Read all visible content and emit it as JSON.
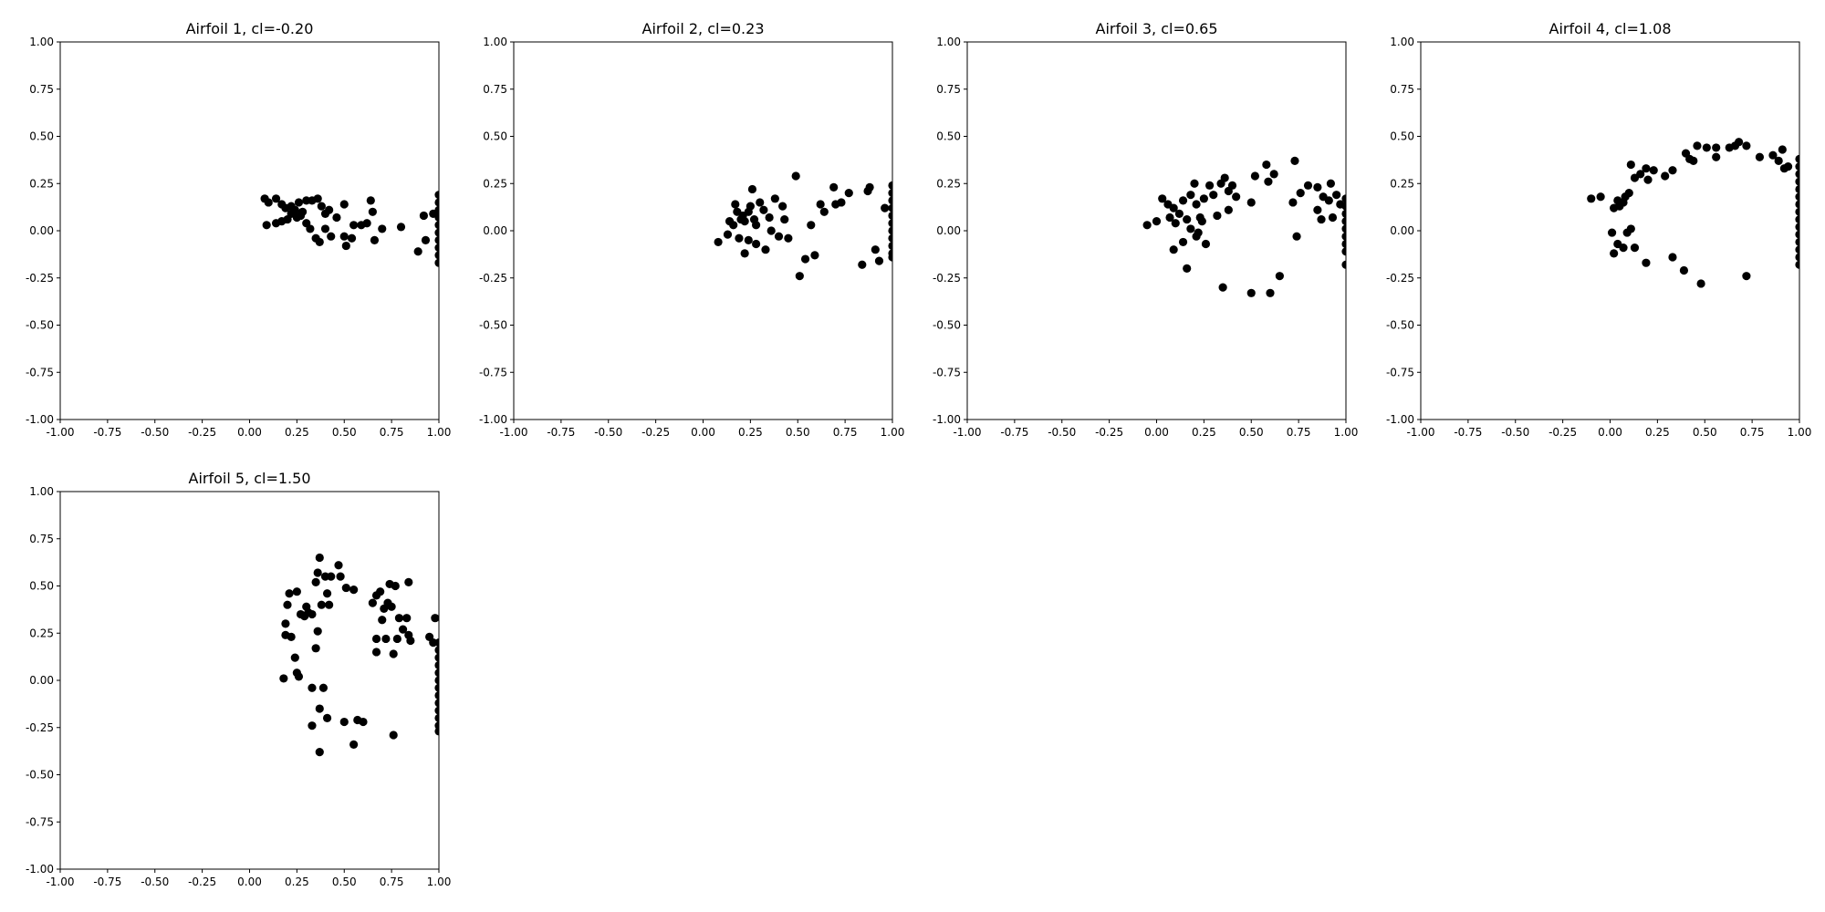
{
  "figure": {
    "background": "#ffffff",
    "marker_color": "#000000"
  },
  "chart_data": [
    {
      "type": "scatter",
      "title": "Airfoil 1, cl=-0.20",
      "xlim": [
        -1.0,
        1.0
      ],
      "ylim": [
        -1.0,
        1.0
      ],
      "xticks": [
        "-1.00",
        "-0.75",
        "-0.50",
        "-0.25",
        "0.00",
        "0.25",
        "0.50",
        "0.75",
        "1.00"
      ],
      "yticks": [
        "-1.00",
        "-0.75",
        "-0.50",
        "-0.25",
        "0.00",
        "0.25",
        "0.50",
        "0.75",
        "1.00"
      ],
      "grid": false,
      "points": [
        [
          0.08,
          0.17
        ],
        [
          0.1,
          0.15
        ],
        [
          0.14,
          0.17
        ],
        [
          0.17,
          0.14
        ],
        [
          0.19,
          0.12
        ],
        [
          0.22,
          0.13
        ],
        [
          0.24,
          0.11
        ],
        [
          0.26,
          0.15
        ],
        [
          0.28,
          0.1
        ],
        [
          0.3,
          0.16
        ],
        [
          0.33,
          0.16
        ],
        [
          0.36,
          0.17
        ],
        [
          0.38,
          0.13
        ],
        [
          0.4,
          0.09
        ],
        [
          0.42,
          0.11
        ],
        [
          0.09,
          0.03
        ],
        [
          0.14,
          0.04
        ],
        [
          0.17,
          0.05
        ],
        [
          0.2,
          0.06
        ],
        [
          0.22,
          0.09
        ],
        [
          0.25,
          0.07
        ],
        [
          0.27,
          0.08
        ],
        [
          0.3,
          0.04
        ],
        [
          0.32,
          0.01
        ],
        [
          0.35,
          -0.04
        ],
        [
          0.37,
          -0.06
        ],
        [
          0.4,
          0.01
        ],
        [
          0.43,
          -0.03
        ],
        [
          0.46,
          0.07
        ],
        [
          0.5,
          0.14
        ],
        [
          0.5,
          -0.03
        ],
        [
          0.51,
          -0.08
        ],
        [
          0.54,
          -0.04
        ],
        [
          0.55,
          0.03
        ],
        [
          0.59,
          0.03
        ],
        [
          0.62,
          0.04
        ],
        [
          0.64,
          0.16
        ],
        [
          0.65,
          0.1
        ],
        [
          0.66,
          -0.05
        ],
        [
          0.7,
          0.01
        ],
        [
          0.8,
          0.02
        ],
        [
          0.89,
          -0.11
        ],
        [
          0.92,
          0.08
        ],
        [
          0.93,
          -0.05
        ],
        [
          0.97,
          0.09
        ],
        [
          1.0,
          0.19
        ],
        [
          1.0,
          0.15
        ],
        [
          1.0,
          0.11
        ],
        [
          1.0,
          0.07
        ],
        [
          1.0,
          0.03
        ],
        [
          1.0,
          -0.01
        ],
        [
          1.0,
          -0.05
        ],
        [
          1.0,
          -0.09
        ],
        [
          1.0,
          -0.13
        ],
        [
          1.0,
          -0.17
        ]
      ]
    },
    {
      "type": "scatter",
      "title": "Airfoil 2, cl=0.23",
      "xlim": [
        -1.0,
        1.0
      ],
      "ylim": [
        -1.0,
        1.0
      ],
      "xticks": [
        "-1.00",
        "-0.75",
        "-0.50",
        "-0.25",
        "0.00",
        "0.25",
        "0.50",
        "0.75",
        "1.00"
      ],
      "yticks": [
        "-1.00",
        "-0.75",
        "-0.50",
        "-0.25",
        "0.00",
        "0.25",
        "0.50",
        "0.75",
        "1.00"
      ],
      "grid": false,
      "points": [
        [
          0.08,
          -0.06
        ],
        [
          0.13,
          -0.02
        ],
        [
          0.14,
          0.05
        ],
        [
          0.16,
          0.03
        ],
        [
          0.18,
          0.1
        ],
        [
          0.2,
          0.06
        ],
        [
          0.21,
          0.08
        ],
        [
          0.22,
          0.05
        ],
        [
          0.24,
          0.1
        ],
        [
          0.25,
          0.13
        ],
        [
          0.27,
          0.06
        ],
        [
          0.28,
          0.03
        ],
        [
          0.3,
          0.15
        ],
        [
          0.32,
          0.11
        ],
        [
          0.35,
          0.07
        ],
        [
          0.17,
          0.14
        ],
        [
          0.19,
          -0.04
        ],
        [
          0.22,
          -0.12
        ],
        [
          0.24,
          -0.05
        ],
        [
          0.26,
          0.22
        ],
        [
          0.28,
          -0.07
        ],
        [
          0.33,
          -0.1
        ],
        [
          0.36,
          0.0
        ],
        [
          0.38,
          0.17
        ],
        [
          0.4,
          -0.03
        ],
        [
          0.42,
          0.13
        ],
        [
          0.43,
          0.06
        ],
        [
          0.45,
          -0.04
        ],
        [
          0.49,
          0.29
        ],
        [
          0.51,
          -0.24
        ],
        [
          0.54,
          -0.15
        ],
        [
          0.57,
          0.03
        ],
        [
          0.59,
          -0.13
        ],
        [
          0.62,
          0.14
        ],
        [
          0.64,
          0.1
        ],
        [
          0.69,
          0.23
        ],
        [
          0.7,
          0.14
        ],
        [
          0.73,
          0.15
        ],
        [
          0.77,
          0.2
        ],
        [
          0.84,
          -0.18
        ],
        [
          0.87,
          0.21
        ],
        [
          0.88,
          0.23
        ],
        [
          0.91,
          -0.1
        ],
        [
          0.93,
          -0.16
        ],
        [
          0.96,
          0.12
        ],
        [
          1.0,
          0.24
        ],
        [
          1.0,
          0.2
        ],
        [
          1.0,
          0.16
        ],
        [
          1.0,
          0.12
        ],
        [
          1.0,
          0.08
        ],
        [
          1.0,
          0.04
        ],
        [
          1.0,
          0.0
        ],
        [
          1.0,
          -0.04
        ],
        [
          1.0,
          -0.08
        ],
        [
          1.0,
          -0.12
        ],
        [
          1.0,
          -0.14
        ]
      ]
    },
    {
      "type": "scatter",
      "title": "Airfoil 3, cl=0.65",
      "xlim": [
        -1.0,
        1.0
      ],
      "ylim": [
        -1.0,
        1.0
      ],
      "xticks": [
        "-1.00",
        "-0.75",
        "-0.50",
        "-0.25",
        "0.00",
        "0.25",
        "0.50",
        "0.75",
        "1.00"
      ],
      "yticks": [
        "-1.00",
        "-0.75",
        "-0.50",
        "-0.25",
        "0.00",
        "0.25",
        "0.50",
        "0.75",
        "1.00"
      ],
      "grid": false,
      "points": [
        [
          -0.05,
          0.03
        ],
        [
          0.0,
          0.05
        ],
        [
          0.03,
          0.17
        ],
        [
          0.06,
          0.14
        ],
        [
          0.07,
          0.07
        ],
        [
          0.09,
          0.12
        ],
        [
          0.1,
          0.04
        ],
        [
          0.12,
          0.09
        ],
        [
          0.14,
          0.16
        ],
        [
          0.16,
          0.06
        ],
        [
          0.18,
          0.19
        ],
        [
          0.2,
          0.25
        ],
        [
          0.21,
          0.14
        ],
        [
          0.23,
          0.07
        ],
        [
          0.25,
          0.17
        ],
        [
          0.09,
          -0.1
        ],
        [
          0.14,
          -0.06
        ],
        [
          0.16,
          -0.2
        ],
        [
          0.18,
          0.01
        ],
        [
          0.21,
          -0.03
        ],
        [
          0.22,
          -0.01
        ],
        [
          0.24,
          0.05
        ],
        [
          0.26,
          -0.07
        ],
        [
          0.28,
          0.24
        ],
        [
          0.3,
          0.19
        ],
        [
          0.32,
          0.08
        ],
        [
          0.34,
          0.25
        ],
        [
          0.35,
          -0.3
        ],
        [
          0.36,
          0.28
        ],
        [
          0.38,
          0.11
        ],
        [
          0.38,
          0.21
        ],
        [
          0.4,
          0.24
        ],
        [
          0.42,
          0.18
        ],
        [
          0.5,
          0.15
        ],
        [
          0.5,
          -0.33
        ],
        [
          0.52,
          0.29
        ],
        [
          0.58,
          0.35
        ],
        [
          0.59,
          0.26
        ],
        [
          0.6,
          -0.33
        ],
        [
          0.62,
          0.3
        ],
        [
          0.65,
          -0.24
        ],
        [
          0.72,
          0.15
        ],
        [
          0.73,
          0.37
        ],
        [
          0.74,
          -0.03
        ],
        [
          0.76,
          0.2
        ],
        [
          0.8,
          0.24
        ],
        [
          0.85,
          0.23
        ],
        [
          0.85,
          0.11
        ],
        [
          0.87,
          0.06
        ],
        [
          0.88,
          0.18
        ],
        [
          0.91,
          0.16
        ],
        [
          0.92,
          0.25
        ],
        [
          0.93,
          0.07
        ],
        [
          0.95,
          0.19
        ],
        [
          0.97,
          0.14
        ],
        [
          1.0,
          0.17
        ],
        [
          1.0,
          0.13
        ],
        [
          1.0,
          0.09
        ],
        [
          1.0,
          0.05
        ],
        [
          1.0,
          0.01
        ],
        [
          1.0,
          -0.03
        ],
        [
          1.0,
          -0.07
        ],
        [
          1.0,
          -0.11
        ],
        [
          1.0,
          -0.18
        ]
      ]
    },
    {
      "type": "scatter",
      "title": "Airfoil 4, cl=1.08",
      "xlim": [
        -1.0,
        1.0
      ],
      "ylim": [
        -1.0,
        1.0
      ],
      "xticks": [
        "-1.00",
        "-0.75",
        "-0.50",
        "-0.25",
        "0.00",
        "0.25",
        "0.50",
        "0.75",
        "1.00"
      ],
      "yticks": [
        "-1.00",
        "-0.75",
        "-0.50",
        "-0.25",
        "0.00",
        "0.25",
        "0.50",
        "0.75",
        "1.00"
      ],
      "grid": false,
      "points": [
        [
          -0.1,
          0.17
        ],
        [
          -0.05,
          0.18
        ],
        [
          0.02,
          0.12
        ],
        [
          0.04,
          0.16
        ],
        [
          0.05,
          0.13
        ],
        [
          0.07,
          0.15
        ],
        [
          0.08,
          0.18
        ],
        [
          0.1,
          0.2
        ],
        [
          0.11,
          0.35
        ],
        [
          0.13,
          0.28
        ],
        [
          0.16,
          0.3
        ],
        [
          0.19,
          0.33
        ],
        [
          0.2,
          0.27
        ],
        [
          0.23,
          0.32
        ],
        [
          0.29,
          0.29
        ],
        [
          0.01,
          -0.01
        ],
        [
          0.02,
          -0.12
        ],
        [
          0.04,
          -0.07
        ],
        [
          0.07,
          -0.09
        ],
        [
          0.09,
          -0.01
        ],
        [
          0.11,
          0.01
        ],
        [
          0.13,
          -0.09
        ],
        [
          0.19,
          -0.17
        ],
        [
          0.33,
          0.32
        ],
        [
          0.33,
          -0.14
        ],
        [
          0.39,
          -0.21
        ],
        [
          0.4,
          0.41
        ],
        [
          0.42,
          0.38
        ],
        [
          0.44,
          0.37
        ],
        [
          0.46,
          0.45
        ],
        [
          0.48,
          -0.28
        ],
        [
          0.51,
          0.44
        ],
        [
          0.56,
          0.44
        ],
        [
          0.56,
          0.39
        ],
        [
          0.63,
          0.44
        ],
        [
          0.66,
          0.45
        ],
        [
          0.68,
          0.47
        ],
        [
          0.72,
          0.45
        ],
        [
          0.72,
          -0.24
        ],
        [
          0.79,
          0.39
        ],
        [
          0.86,
          0.4
        ],
        [
          0.89,
          0.37
        ],
        [
          0.91,
          0.43
        ],
        [
          0.92,
          0.33
        ],
        [
          0.94,
          0.34
        ],
        [
          1.0,
          0.38
        ],
        [
          1.0,
          0.34
        ],
        [
          1.0,
          0.3
        ],
        [
          1.0,
          0.26
        ],
        [
          1.0,
          0.22
        ],
        [
          1.0,
          0.18
        ],
        [
          1.0,
          0.14
        ],
        [
          1.0,
          0.1
        ],
        [
          1.0,
          0.06
        ],
        [
          1.0,
          0.02
        ],
        [
          1.0,
          -0.02
        ],
        [
          1.0,
          -0.06
        ],
        [
          1.0,
          -0.1
        ],
        [
          1.0,
          -0.14
        ],
        [
          1.0,
          -0.18
        ]
      ]
    },
    {
      "type": "scatter",
      "title": "Airfoil 5, cl=1.50",
      "xlim": [
        -1.0,
        1.0
      ],
      "ylim": [
        -1.0,
        1.0
      ],
      "xticks": [
        "-1.00",
        "-0.75",
        "-0.50",
        "-0.25",
        "0.00",
        "0.25",
        "0.50",
        "0.75",
        "1.00"
      ],
      "yticks": [
        "-1.00",
        "-0.75",
        "-0.50",
        "-0.25",
        "0.00",
        "0.25",
        "0.50",
        "0.75",
        "1.00"
      ],
      "grid": false,
      "points": [
        [
          0.19,
          0.3
        ],
        [
          0.19,
          0.24
        ],
        [
          0.2,
          0.4
        ],
        [
          0.21,
          0.46
        ],
        [
          0.22,
          0.23
        ],
        [
          0.25,
          0.47
        ],
        [
          0.27,
          0.35
        ],
        [
          0.29,
          0.34
        ],
        [
          0.3,
          0.39
        ],
        [
          0.31,
          0.36
        ],
        [
          0.33,
          0.35
        ],
        [
          0.35,
          0.52
        ],
        [
          0.36,
          0.26
        ],
        [
          0.36,
          0.57
        ],
        [
          0.37,
          0.65
        ],
        [
          0.38,
          0.4
        ],
        [
          0.4,
          0.55
        ],
        [
          0.41,
          0.46
        ],
        [
          0.42,
          0.4
        ],
        [
          0.43,
          0.55
        ],
        [
          0.47,
          0.61
        ],
        [
          0.48,
          0.55
        ],
        [
          0.51,
          0.49
        ],
        [
          0.55,
          0.48
        ],
        [
          0.65,
          0.41
        ],
        [
          0.67,
          0.45
        ],
        [
          0.69,
          0.47
        ],
        [
          0.71,
          0.38
        ],
        [
          0.73,
          0.41
        ],
        [
          0.74,
          0.51
        ],
        [
          0.75,
          0.39
        ],
        [
          0.77,
          0.5
        ],
        [
          0.79,
          0.33
        ],
        [
          0.81,
          0.27
        ],
        [
          0.83,
          0.33
        ],
        [
          0.84,
          0.24
        ],
        [
          0.84,
          0.52
        ],
        [
          0.67,
          0.22
        ],
        [
          0.67,
          0.15
        ],
        [
          0.7,
          0.32
        ],
        [
          0.72,
          0.22
        ],
        [
          0.76,
          0.14
        ],
        [
          0.78,
          0.22
        ],
        [
          0.85,
          0.21
        ],
        [
          0.95,
          0.23
        ],
        [
          0.18,
          0.01
        ],
        [
          0.24,
          0.12
        ],
        [
          0.25,
          0.04
        ],
        [
          0.26,
          0.02
        ],
        [
          0.33,
          -0.04
        ],
        [
          0.33,
          -0.24
        ],
        [
          0.35,
          0.17
        ],
        [
          0.37,
          -0.15
        ],
        [
          0.37,
          -0.38
        ],
        [
          0.39,
          -0.04
        ],
        [
          0.41,
          -0.2
        ],
        [
          0.5,
          -0.22
        ],
        [
          0.55,
          -0.34
        ],
        [
          0.57,
          -0.21
        ],
        [
          0.6,
          -0.22
        ],
        [
          0.76,
          -0.29
        ],
        [
          0.98,
          0.33
        ],
        [
          0.97,
          0.2
        ],
        [
          1.0,
          0.2
        ],
        [
          1.0,
          0.16
        ],
        [
          1.0,
          0.12
        ],
        [
          1.0,
          0.08
        ],
        [
          1.0,
          0.04
        ],
        [
          1.0,
          0.0
        ],
        [
          1.0,
          -0.04
        ],
        [
          1.0,
          -0.08
        ],
        [
          1.0,
          -0.12
        ],
        [
          1.0,
          -0.16
        ],
        [
          1.0,
          -0.2
        ],
        [
          1.0,
          -0.24
        ],
        [
          1.0,
          -0.27
        ]
      ]
    }
  ]
}
